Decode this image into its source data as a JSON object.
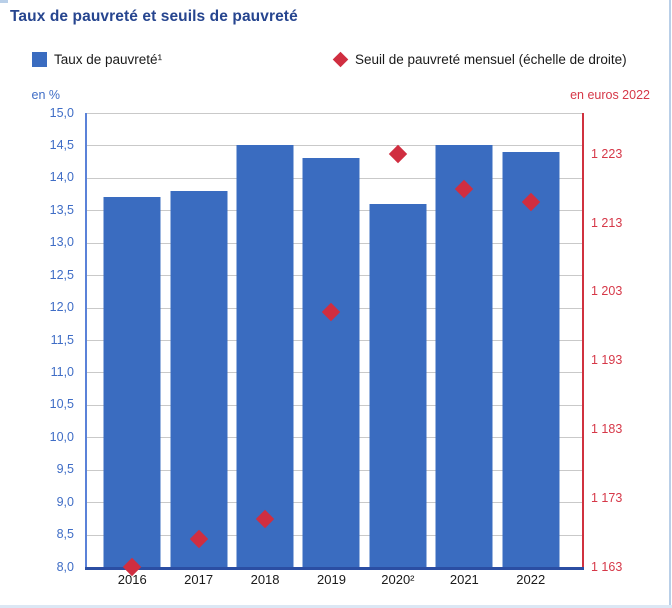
{
  "title": "Taux de pauvreté et seuils de pauvreté",
  "legend": {
    "bar_label": "Taux de pauvreté¹",
    "marker_label": "Seuil de pauvreté mensuel (échelle de droite)"
  },
  "chart_data": {
    "type": "bar",
    "title": "Taux de pauvreté et seuils de pauvreté",
    "categories": [
      "2016",
      "2017",
      "2018",
      "2019",
      "2020²",
      "2021",
      "2022"
    ],
    "series": [
      {
        "name": "Taux de pauvreté¹",
        "type": "bar",
        "axis": "left",
        "values": [
          13.7,
          13.8,
          14.5,
          14.3,
          13.6,
          14.5,
          14.4
        ]
      },
      {
        "name": "Seuil de pauvreté mensuel (échelle de droite)",
        "type": "scatter",
        "marker": "diamond",
        "axis": "right",
        "values": [
          1163,
          1167,
          1170,
          1200,
          1223,
          1218,
          1216
        ]
      }
    ],
    "left_axis": {
      "label": "en %",
      "min": 8.0,
      "max": 15.0,
      "step": 0.5,
      "tick_labels": [
        "15,0",
        "14,5",
        "14,0",
        "13,5",
        "13,0",
        "12,5",
        "12,0",
        "11,5",
        "11,0",
        "10,5",
        "10,0",
        "9,5",
        "9,0",
        "8,5",
        "8,0"
      ]
    },
    "right_axis": {
      "label": "en euros 2022",
      "min": 1163,
      "max": 1229,
      "tick_values": [
        1223,
        1213,
        1203,
        1193,
        1183,
        1173,
        1163
      ],
      "tick_labels": [
        "1 223",
        "1 213",
        "1 203",
        "1 193",
        "1 183",
        "1 173",
        "1 163"
      ]
    },
    "grid": true,
    "legend_position": "top"
  },
  "colors": {
    "bar_blue": "#3a6cc0",
    "marker_red": "#d02e40",
    "title_navy": "#26458f",
    "axis_left_blue": "#5b82d8",
    "axis_bottom_blue": "#2b4ea3",
    "axis_right_red": "#d0313f",
    "tick_blue": "#3f6dc6",
    "tick_red": "#d63848",
    "gridline_gray": "#c9c9c9",
    "edge_lightblue": "#b9cfe8",
    "band_lightblue": "#dbe7f4"
  }
}
